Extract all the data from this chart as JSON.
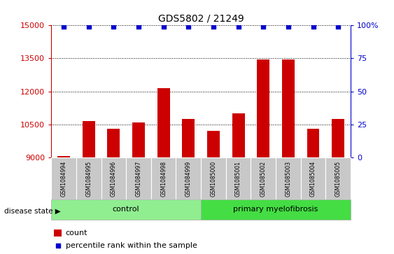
{
  "title": "GDS5802 / 21249",
  "samples": [
    "GSM1084994",
    "GSM1084995",
    "GSM1084996",
    "GSM1084997",
    "GSM1084998",
    "GSM1084999",
    "GSM1085000",
    "GSM1085001",
    "GSM1085002",
    "GSM1085003",
    "GSM1085004",
    "GSM1085005"
  ],
  "counts": [
    9050,
    10650,
    10300,
    10600,
    12150,
    10750,
    10200,
    11000,
    13450,
    13450,
    10300,
    10750
  ],
  "percentile_rank": 99,
  "control_label": "control",
  "disease_label": "primary myelofibrosis",
  "disease_state_label": "disease state",
  "ylim_left": [
    9000,
    15000
  ],
  "ylim_right": [
    0,
    100
  ],
  "yticks_left": [
    9000,
    10500,
    12000,
    13500,
    15000
  ],
  "yticks_right": [
    0,
    25,
    50,
    75,
    100
  ],
  "bar_color": "#cc0000",
  "dot_color": "#0000cc",
  "control_bg": "#90ee90",
  "disease_bg": "#44dd44",
  "xlabel_bg": "#c8c8c8",
  "bar_width": 0.5,
  "legend_count_label": "count",
  "legend_percentile_label": "percentile rank within the sample",
  "n_control": 6,
  "n_disease": 6
}
